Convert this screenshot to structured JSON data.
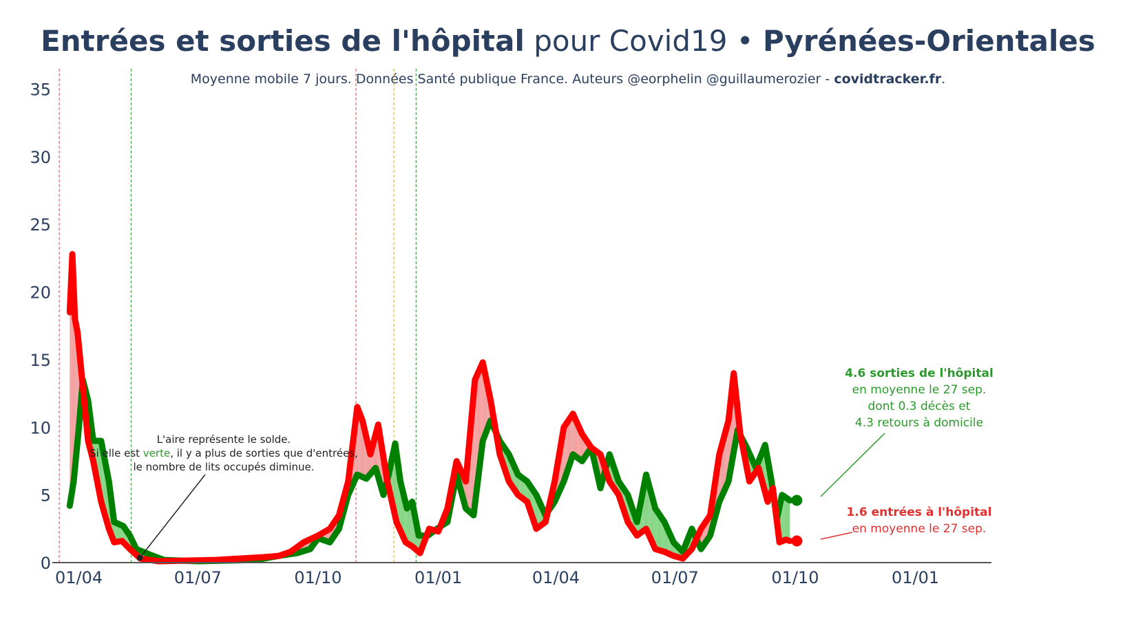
{
  "title": {
    "part1": "Entrées et sorties de l'hôpital",
    "part2": " pour Covid19 • ",
    "part3": "Pyrénées-Orientales"
  },
  "subtitle": {
    "text": "Moyenne mobile 7 jours. Données Santé publique France. Auteurs @eorphelin @guillaumerozier - ",
    "site": "covidtracker.fr",
    "end": "."
  },
  "colors": {
    "entries": "#ff0000",
    "exits": "#008000",
    "area_pos": "#f2a0a0",
    "area_neg": "#86d486",
    "axis": "#555555",
    "text": "#2a3f5f"
  },
  "chart_data": {
    "type": "line",
    "x_ticks": [
      "01/04",
      "01/07",
      "01/10",
      "01/01",
      "01/04",
      "01/07",
      "01/10",
      "01/01"
    ],
    "x_tick_dates": [
      "2020-04-01",
      "2020-07-01",
      "2020-10-01",
      "2021-01-01",
      "2021-04-01",
      "2021-07-01",
      "2021-10-01",
      "2022-01-01"
    ],
    "y_ticks": [
      0,
      5,
      10,
      15,
      20,
      25,
      30,
      35
    ],
    "ylim": [
      0,
      36.5
    ],
    "xlim": [
      "2020-03-18",
      "2022-02-15"
    ],
    "grid": false,
    "vlines": [
      {
        "date": "2020-03-17",
        "color": "#e06060"
      },
      {
        "date": "2020-05-11",
        "color": "#44a044"
      },
      {
        "date": "2020-10-30",
        "color": "#e06060"
      },
      {
        "date": "2020-11-28",
        "color": "#f0b040"
      },
      {
        "date": "2020-12-15",
        "color": "#44a044"
      }
    ],
    "series_exits": {
      "name": "sorties de l'hôpital",
      "points": [
        [
          "2020-03-25",
          4.2
        ],
        [
          "2020-03-28",
          6
        ],
        [
          "2020-04-01",
          10
        ],
        [
          "2020-04-04",
          13.5
        ],
        [
          "2020-04-08",
          12
        ],
        [
          "2020-04-12",
          9
        ],
        [
          "2020-04-18",
          9
        ],
        [
          "2020-04-24",
          6
        ],
        [
          "2020-04-28",
          3
        ],
        [
          "2020-05-05",
          2.7
        ],
        [
          "2020-05-10",
          2
        ],
        [
          "2020-05-15",
          1
        ],
        [
          "2020-05-25",
          0.6
        ],
        [
          "2020-06-05",
          0.2
        ],
        [
          "2020-07-01",
          0.1
        ],
        [
          "2020-08-15",
          0.2
        ],
        [
          "2020-09-01",
          0.5
        ],
        [
          "2020-09-15",
          0.7
        ],
        [
          "2020-09-25",
          1
        ],
        [
          "2020-10-01",
          1.8
        ],
        [
          "2020-10-10",
          1.5
        ],
        [
          "2020-10-17",
          2.5
        ],
        [
          "2020-10-24",
          5
        ],
        [
          "2020-10-31",
          6.5
        ],
        [
          "2020-11-07",
          6.2
        ],
        [
          "2020-11-14",
          7
        ],
        [
          "2020-11-20",
          5
        ],
        [
          "2020-11-24",
          6.5
        ],
        [
          "2020-11-29",
          8.8
        ],
        [
          "2020-12-03",
          6
        ],
        [
          "2020-12-08",
          4
        ],
        [
          "2020-12-12",
          4.5
        ],
        [
          "2020-12-17",
          2
        ],
        [
          "2020-12-24",
          2
        ],
        [
          "2020-12-31",
          2.5
        ],
        [
          "2021-01-08",
          3
        ],
        [
          "2021-01-15",
          6.5
        ],
        [
          "2021-01-22",
          4
        ],
        [
          "2021-01-28",
          3.5
        ],
        [
          "2021-02-04",
          9
        ],
        [
          "2021-02-10",
          10.5
        ],
        [
          "2021-02-17",
          9
        ],
        [
          "2021-02-24",
          8
        ],
        [
          "2021-03-03",
          6.5
        ],
        [
          "2021-03-10",
          6
        ],
        [
          "2021-03-17",
          5
        ],
        [
          "2021-03-24",
          3.5
        ],
        [
          "2021-03-31",
          4.5
        ],
        [
          "2021-04-07",
          6
        ],
        [
          "2021-04-14",
          8
        ],
        [
          "2021-04-21",
          7.5
        ],
        [
          "2021-04-28",
          8.5
        ],
        [
          "2021-05-05",
          5.5
        ],
        [
          "2021-05-12",
          8
        ],
        [
          "2021-05-19",
          6
        ],
        [
          "2021-05-26",
          5
        ],
        [
          "2021-06-02",
          3
        ],
        [
          "2021-06-09",
          6.5
        ],
        [
          "2021-06-16",
          4
        ],
        [
          "2021-06-23",
          3
        ],
        [
          "2021-06-30",
          1.5
        ],
        [
          "2021-07-07",
          0.8
        ],
        [
          "2021-07-14",
          2.5
        ],
        [
          "2021-07-21",
          1
        ],
        [
          "2021-07-28",
          2
        ],
        [
          "2021-08-04",
          4.5
        ],
        [
          "2021-08-11",
          6
        ],
        [
          "2021-08-18",
          9.8
        ],
        [
          "2021-08-25",
          8.5
        ],
        [
          "2021-09-01",
          7
        ],
        [
          "2021-09-08",
          8.7
        ],
        [
          "2021-09-13",
          6
        ],
        [
          "2021-09-17",
          3.2
        ],
        [
          "2021-09-21",
          5
        ],
        [
          "2021-09-27",
          4.6
        ]
      ]
    },
    "series_entries": {
      "name": "entrées à l'hôpital",
      "points": [
        [
          "2020-03-25",
          18.5
        ],
        [
          "2020-03-27",
          22.8
        ],
        [
          "2020-03-29",
          18
        ],
        [
          "2020-03-31",
          17
        ],
        [
          "2020-04-04",
          13
        ],
        [
          "2020-04-08",
          9
        ],
        [
          "2020-04-12",
          7.5
        ],
        [
          "2020-04-18",
          4.5
        ],
        [
          "2020-04-24",
          2.5
        ],
        [
          "2020-04-28",
          1.5
        ],
        [
          "2020-05-04",
          1.6
        ],
        [
          "2020-05-10",
          1
        ],
        [
          "2020-05-18",
          0.3
        ],
        [
          "2020-06-01",
          0.1
        ],
        [
          "2020-07-15",
          0.2
        ],
        [
          "2020-08-20",
          0.4
        ],
        [
          "2020-09-01",
          0.5
        ],
        [
          "2020-09-10",
          0.8
        ],
        [
          "2020-09-20",
          1.5
        ],
        [
          "2020-10-01",
          2
        ],
        [
          "2020-10-10",
          2.5
        ],
        [
          "2020-10-17",
          3.5
        ],
        [
          "2020-10-24",
          6
        ],
        [
          "2020-10-31",
          11.5
        ],
        [
          "2020-11-04",
          10.5
        ],
        [
          "2020-11-10",
          8
        ],
        [
          "2020-11-16",
          10.2
        ],
        [
          "2020-11-23",
          6
        ],
        [
          "2020-11-30",
          3
        ],
        [
          "2020-12-07",
          1.5
        ],
        [
          "2020-12-12",
          1.2
        ],
        [
          "2020-12-18",
          0.7
        ],
        [
          "2020-12-25",
          2.5
        ],
        [
          "2021-01-01",
          2.3
        ],
        [
          "2021-01-08",
          4
        ],
        [
          "2021-01-15",
          7.5
        ],
        [
          "2021-01-22",
          6
        ],
        [
          "2021-01-29",
          13.5
        ],
        [
          "2021-02-04",
          14.8
        ],
        [
          "2021-02-10",
          12
        ],
        [
          "2021-02-17",
          8
        ],
        [
          "2021-02-24",
          6
        ],
        [
          "2021-03-03",
          5
        ],
        [
          "2021-03-10",
          4.5
        ],
        [
          "2021-03-17",
          2.5
        ],
        [
          "2021-03-24",
          3
        ],
        [
          "2021-03-31",
          6
        ],
        [
          "2021-04-07",
          10
        ],
        [
          "2021-04-14",
          11
        ],
        [
          "2021-04-21",
          9.5
        ],
        [
          "2021-04-28",
          8.5
        ],
        [
          "2021-05-05",
          8
        ],
        [
          "2021-05-12",
          6
        ],
        [
          "2021-05-19",
          5
        ],
        [
          "2021-05-26",
          3
        ],
        [
          "2021-06-02",
          2
        ],
        [
          "2021-06-09",
          2.5
        ],
        [
          "2021-06-16",
          1
        ],
        [
          "2021-06-23",
          0.8
        ],
        [
          "2021-06-30",
          0.5
        ],
        [
          "2021-07-07",
          0.3
        ],
        [
          "2021-07-14",
          1
        ],
        [
          "2021-07-21",
          2.5
        ],
        [
          "2021-07-28",
          3.5
        ],
        [
          "2021-08-04",
          8
        ],
        [
          "2021-08-11",
          10.5
        ],
        [
          "2021-08-15",
          14
        ],
        [
          "2021-08-20",
          9.5
        ],
        [
          "2021-08-27",
          6
        ],
        [
          "2021-09-03",
          7
        ],
        [
          "2021-09-10",
          4.5
        ],
        [
          "2021-09-14",
          5.5
        ],
        [
          "2021-09-19",
          1.5
        ],
        [
          "2021-09-24",
          1.7
        ],
        [
          "2021-09-27",
          1.6
        ]
      ]
    }
  },
  "annotation_note": {
    "line1": "L'aire représente le solde.",
    "line2a": "Si elle est ",
    "line2b": "verte",
    "line2c": ", il y a plus de sorties que d'entrées,",
    "line3": "le nombre de lits occupés diminue."
  },
  "annotation_exits": {
    "line1": "4.6 sorties de l'hôpital",
    "line2": "en moyenne le 27 sep.",
    "line3": "dont 0.3 décès et",
    "line4": "4.3 retours à domicile"
  },
  "annotation_entries": {
    "line1": "1.6 entrées à l'hôpital",
    "line2": "en moyenne le 27 sep."
  }
}
